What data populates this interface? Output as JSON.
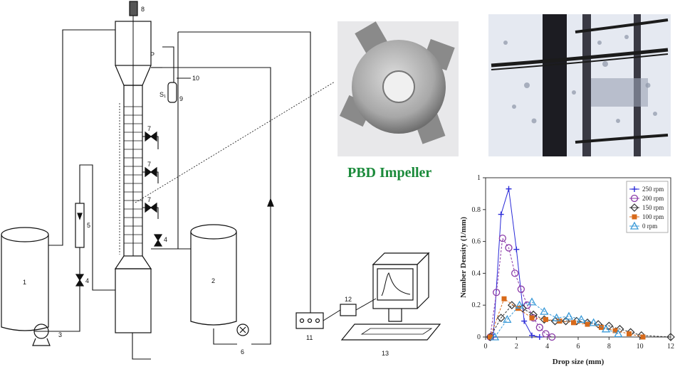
{
  "diagram": {
    "component_labels": [
      "1",
      "2",
      "3",
      "4",
      "4",
      "5",
      "6",
      "7",
      "7",
      "7",
      "8",
      "9",
      "10",
      "11",
      "12",
      "13",
      "P",
      "S₁"
    ]
  },
  "impeller_caption": "PBD Impeller",
  "chart_data": {
    "type": "line",
    "xlabel": "Drop size (mm)",
    "ylabel": "Number Density (1/mm)",
    "xlim": [
      0,
      12
    ],
    "ylim": [
      0,
      1
    ],
    "xticks": [
      "0",
      "2",
      "4",
      "6",
      "8",
      "10",
      "12"
    ],
    "yticks": [
      "0",
      "0.2",
      "0.4",
      "0.6",
      "0.8",
      "1"
    ],
    "legend_position": "top-right",
    "series": [
      {
        "name": "250 rpm",
        "color": "#2a2ad8",
        "marker": "plus",
        "x": [
          0.5,
          1.0,
          1.5,
          2.0,
          2.5,
          3.0,
          3.5
        ],
        "y": [
          0.0,
          0.77,
          0.93,
          0.55,
          0.1,
          0.01,
          0.0
        ]
      },
      {
        "name": "200 rpm",
        "color": "#8a3aa8",
        "marker": "circle",
        "x": [
          0.3,
          0.7,
          1.1,
          1.5,
          1.9,
          2.3,
          2.7,
          3.1,
          3.5,
          3.9,
          4.3
        ],
        "y": [
          0.0,
          0.28,
          0.62,
          0.56,
          0.4,
          0.3,
          0.2,
          0.12,
          0.06,
          0.02,
          0.0
        ]
      },
      {
        "name": "150 rpm",
        "color": "#333333",
        "marker": "diamond",
        "x": [
          0.3,
          1.0,
          1.7,
          2.4,
          3.1,
          3.8,
          4.5,
          5.2,
          5.9,
          6.6,
          7.3,
          8.0,
          8.7,
          9.4,
          10.1,
          12.0
        ],
        "y": [
          0.0,
          0.12,
          0.2,
          0.18,
          0.14,
          0.11,
          0.1,
          0.1,
          0.1,
          0.09,
          0.08,
          0.07,
          0.05,
          0.03,
          0.01,
          0.0
        ]
      },
      {
        "name": "100 rpm",
        "color": "#d86a1a",
        "marker": "square",
        "x": [
          0.3,
          1.2,
          2.1,
          3.0,
          3.9,
          4.8,
          5.7,
          6.6,
          7.5,
          8.4,
          9.3,
          10.2
        ],
        "y": [
          0.0,
          0.24,
          0.18,
          0.12,
          0.11,
          0.1,
          0.09,
          0.08,
          0.06,
          0.04,
          0.02,
          0.0
        ]
      },
      {
        "name": "0 rpm",
        "color": "#3a9ad8",
        "marker": "triangle",
        "x": [
          0.6,
          1.4,
          2.2,
          3.0,
          3.8,
          4.6,
          5.4,
          6.2,
          7.0,
          7.8,
          8.6
        ],
        "y": [
          0.0,
          0.11,
          0.2,
          0.22,
          0.16,
          0.12,
          0.13,
          0.11,
          0.09,
          0.05,
          0.02
        ]
      }
    ]
  }
}
